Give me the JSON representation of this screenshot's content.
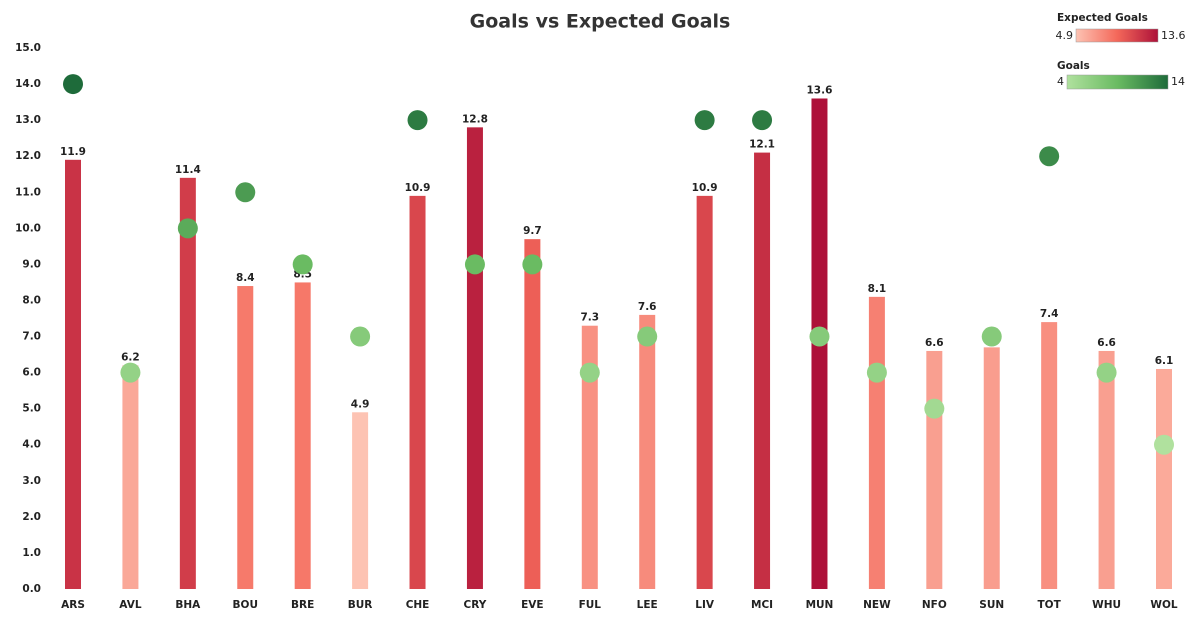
{
  "chart_data": {
    "type": "bar",
    "title": "Goals vs Expected Goals",
    "categories": [
      "ARS",
      "AVL",
      "BHA",
      "BOU",
      "BRE",
      "BUR",
      "CHE",
      "CRY",
      "EVE",
      "FUL",
      "LEE",
      "LIV",
      "MCI",
      "MUN",
      "NEW",
      "NFO",
      "SUN",
      "TOT",
      "WHU",
      "WOL"
    ],
    "series": [
      {
        "name": "Expected Goals",
        "type": "bar",
        "values": [
          11.9,
          6.2,
          11.4,
          8.4,
          8.5,
          4.9,
          10.9,
          12.8,
          9.7,
          7.3,
          7.6,
          10.9,
          12.1,
          13.6,
          8.1,
          6.6,
          6.7,
          7.4,
          6.6,
          6.1
        ],
        "colorscale": {
          "min": 4.9,
          "max": 13.6,
          "colors": [
            "#fdc3b3",
            "#f4685a",
            "#ad1139"
          ]
        }
      },
      {
        "name": "Goals",
        "type": "scatter",
        "values": [
          14,
          6,
          10,
          11,
          9,
          7,
          13,
          9,
          9,
          6,
          7,
          13,
          13,
          7,
          6,
          5,
          7,
          12,
          6,
          4
        ],
        "colorscale": {
          "min": 4,
          "max": 14,
          "colors": [
            "#b0e19e",
            "#6abb62",
            "#1e6b3a"
          ]
        }
      }
    ],
    "ylim": [
      0,
      15
    ],
    "yticks": [
      {
        "value": 0,
        "label": "0.0"
      },
      {
        "value": 1,
        "label": "1.0"
      },
      {
        "value": 2,
        "label": "2.0"
      },
      {
        "value": 3,
        "label": "3.0"
      },
      {
        "value": 4,
        "label": "4.0"
      },
      {
        "value": 5,
        "label": "5.0"
      },
      {
        "value": 6,
        "label": "6.0"
      },
      {
        "value": 7,
        "label": "7.0"
      },
      {
        "value": 8,
        "label": "8.0"
      },
      {
        "value": 9,
        "label": "9.0"
      },
      {
        "value": 10,
        "label": "10.0"
      },
      {
        "value": 11,
        "label": "11.0"
      },
      {
        "value": 12,
        "label": "12.0"
      },
      {
        "value": 13,
        "label": "13.0"
      },
      {
        "value": 14,
        "label": "14.0"
      },
      {
        "value": 15,
        "label": "15.0"
      }
    ],
    "grid": false
  }
}
